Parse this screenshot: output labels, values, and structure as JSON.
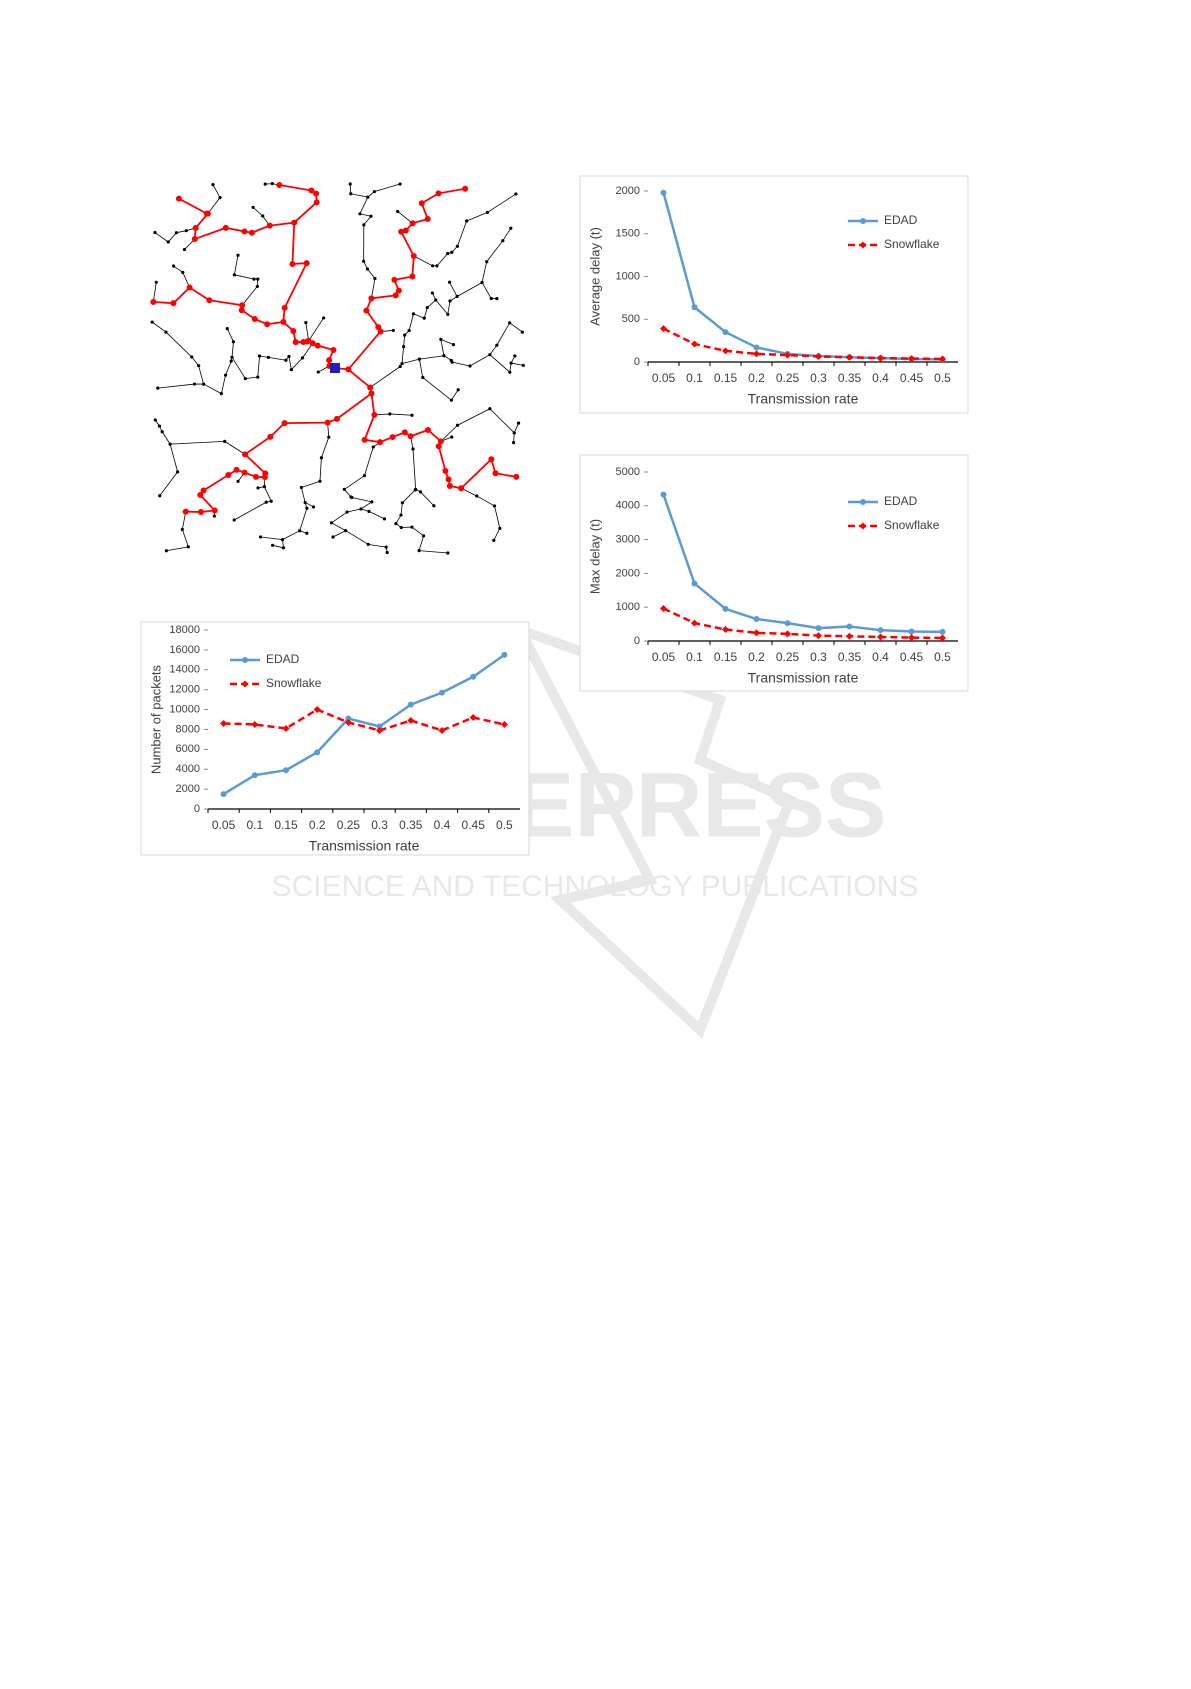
{
  "watermark": {
    "title": "SCITEPRESS",
    "subtitle": "SCIENCE AND TECHNOLOGY PUBLICATIONS"
  },
  "chart_data": [
    {
      "type": "line",
      "y_label": "Average delay (t)",
      "x_label": "Transmission rate",
      "legend": "upper right",
      "categories": [
        "0.05",
        "0.1",
        "0.15",
        "0.2",
        "0.25",
        "0.3",
        "0.35",
        "0.4",
        "0.45",
        "0.5"
      ],
      "ylim": [
        0,
        2000
      ],
      "yticks": [
        0,
        500,
        1000,
        1500,
        2000
      ],
      "series": [
        {
          "name": "EDAD",
          "color": "#5b9bd5",
          "style": "solid",
          "marker": "circle",
          "values": [
            1980,
            640,
            350,
            170,
            95,
            70,
            55,
            45,
            35,
            30
          ]
        },
        {
          "name": "Snowflake",
          "color": "#ff0000",
          "style": "dashed",
          "marker": "diamond",
          "values": [
            390,
            210,
            130,
            95,
            80,
            65,
            55,
            45,
            40,
            35
          ]
        }
      ]
    },
    {
      "type": "line",
      "y_label": "Max delay (t)",
      "x_label": "Transmission rate",
      "legend": "upper right",
      "categories": [
        "0.05",
        "0.1",
        "0.15",
        "0.2",
        "0.25",
        "0.3",
        "0.35",
        "0.4",
        "0.45",
        "0.5"
      ],
      "ylim": [
        0,
        5000
      ],
      "yticks": [
        0,
        1000,
        2000,
        3000,
        4000,
        5000
      ],
      "series": [
        {
          "name": "EDAD",
          "color": "#5b9bd5",
          "style": "solid",
          "marker": "circle",
          "values": [
            4330,
            1700,
            950,
            650,
            530,
            380,
            430,
            320,
            280,
            270
          ]
        },
        {
          "name": "Snowflake",
          "color": "#ff0000",
          "style": "dashed",
          "marker": "diamond",
          "values": [
            960,
            530,
            340,
            240,
            210,
            160,
            140,
            120,
            100,
            90
          ]
        }
      ]
    },
    {
      "type": "line",
      "y_label": "Number of packets",
      "x_label": "Transmission rate",
      "legend": "upper left",
      "categories": [
        "0.05",
        "0.1",
        "0.15",
        "0.2",
        "0.25",
        "0.3",
        "0.35",
        "0.4",
        "0.45",
        "0.5"
      ],
      "ylim": [
        0,
        18000
      ],
      "yticks": [
        0,
        2000,
        4000,
        6000,
        8000,
        10000,
        12000,
        14000,
        16000,
        18000
      ],
      "series": [
        {
          "name": "EDAD",
          "color": "#5b9bd5",
          "style": "solid",
          "marker": "circle",
          "values": [
            1500,
            3400,
            3900,
            5700,
            9100,
            8300,
            10500,
            11700,
            13300,
            15500
          ]
        },
        {
          "name": "Snowflake",
          "color": "#ff0000",
          "style": "dashed",
          "marker": "diamond",
          "values": [
            8600,
            8500,
            8100,
            10000,
            8700,
            7900,
            8900,
            7900,
            9200,
            8500
          ]
        }
      ]
    }
  ]
}
